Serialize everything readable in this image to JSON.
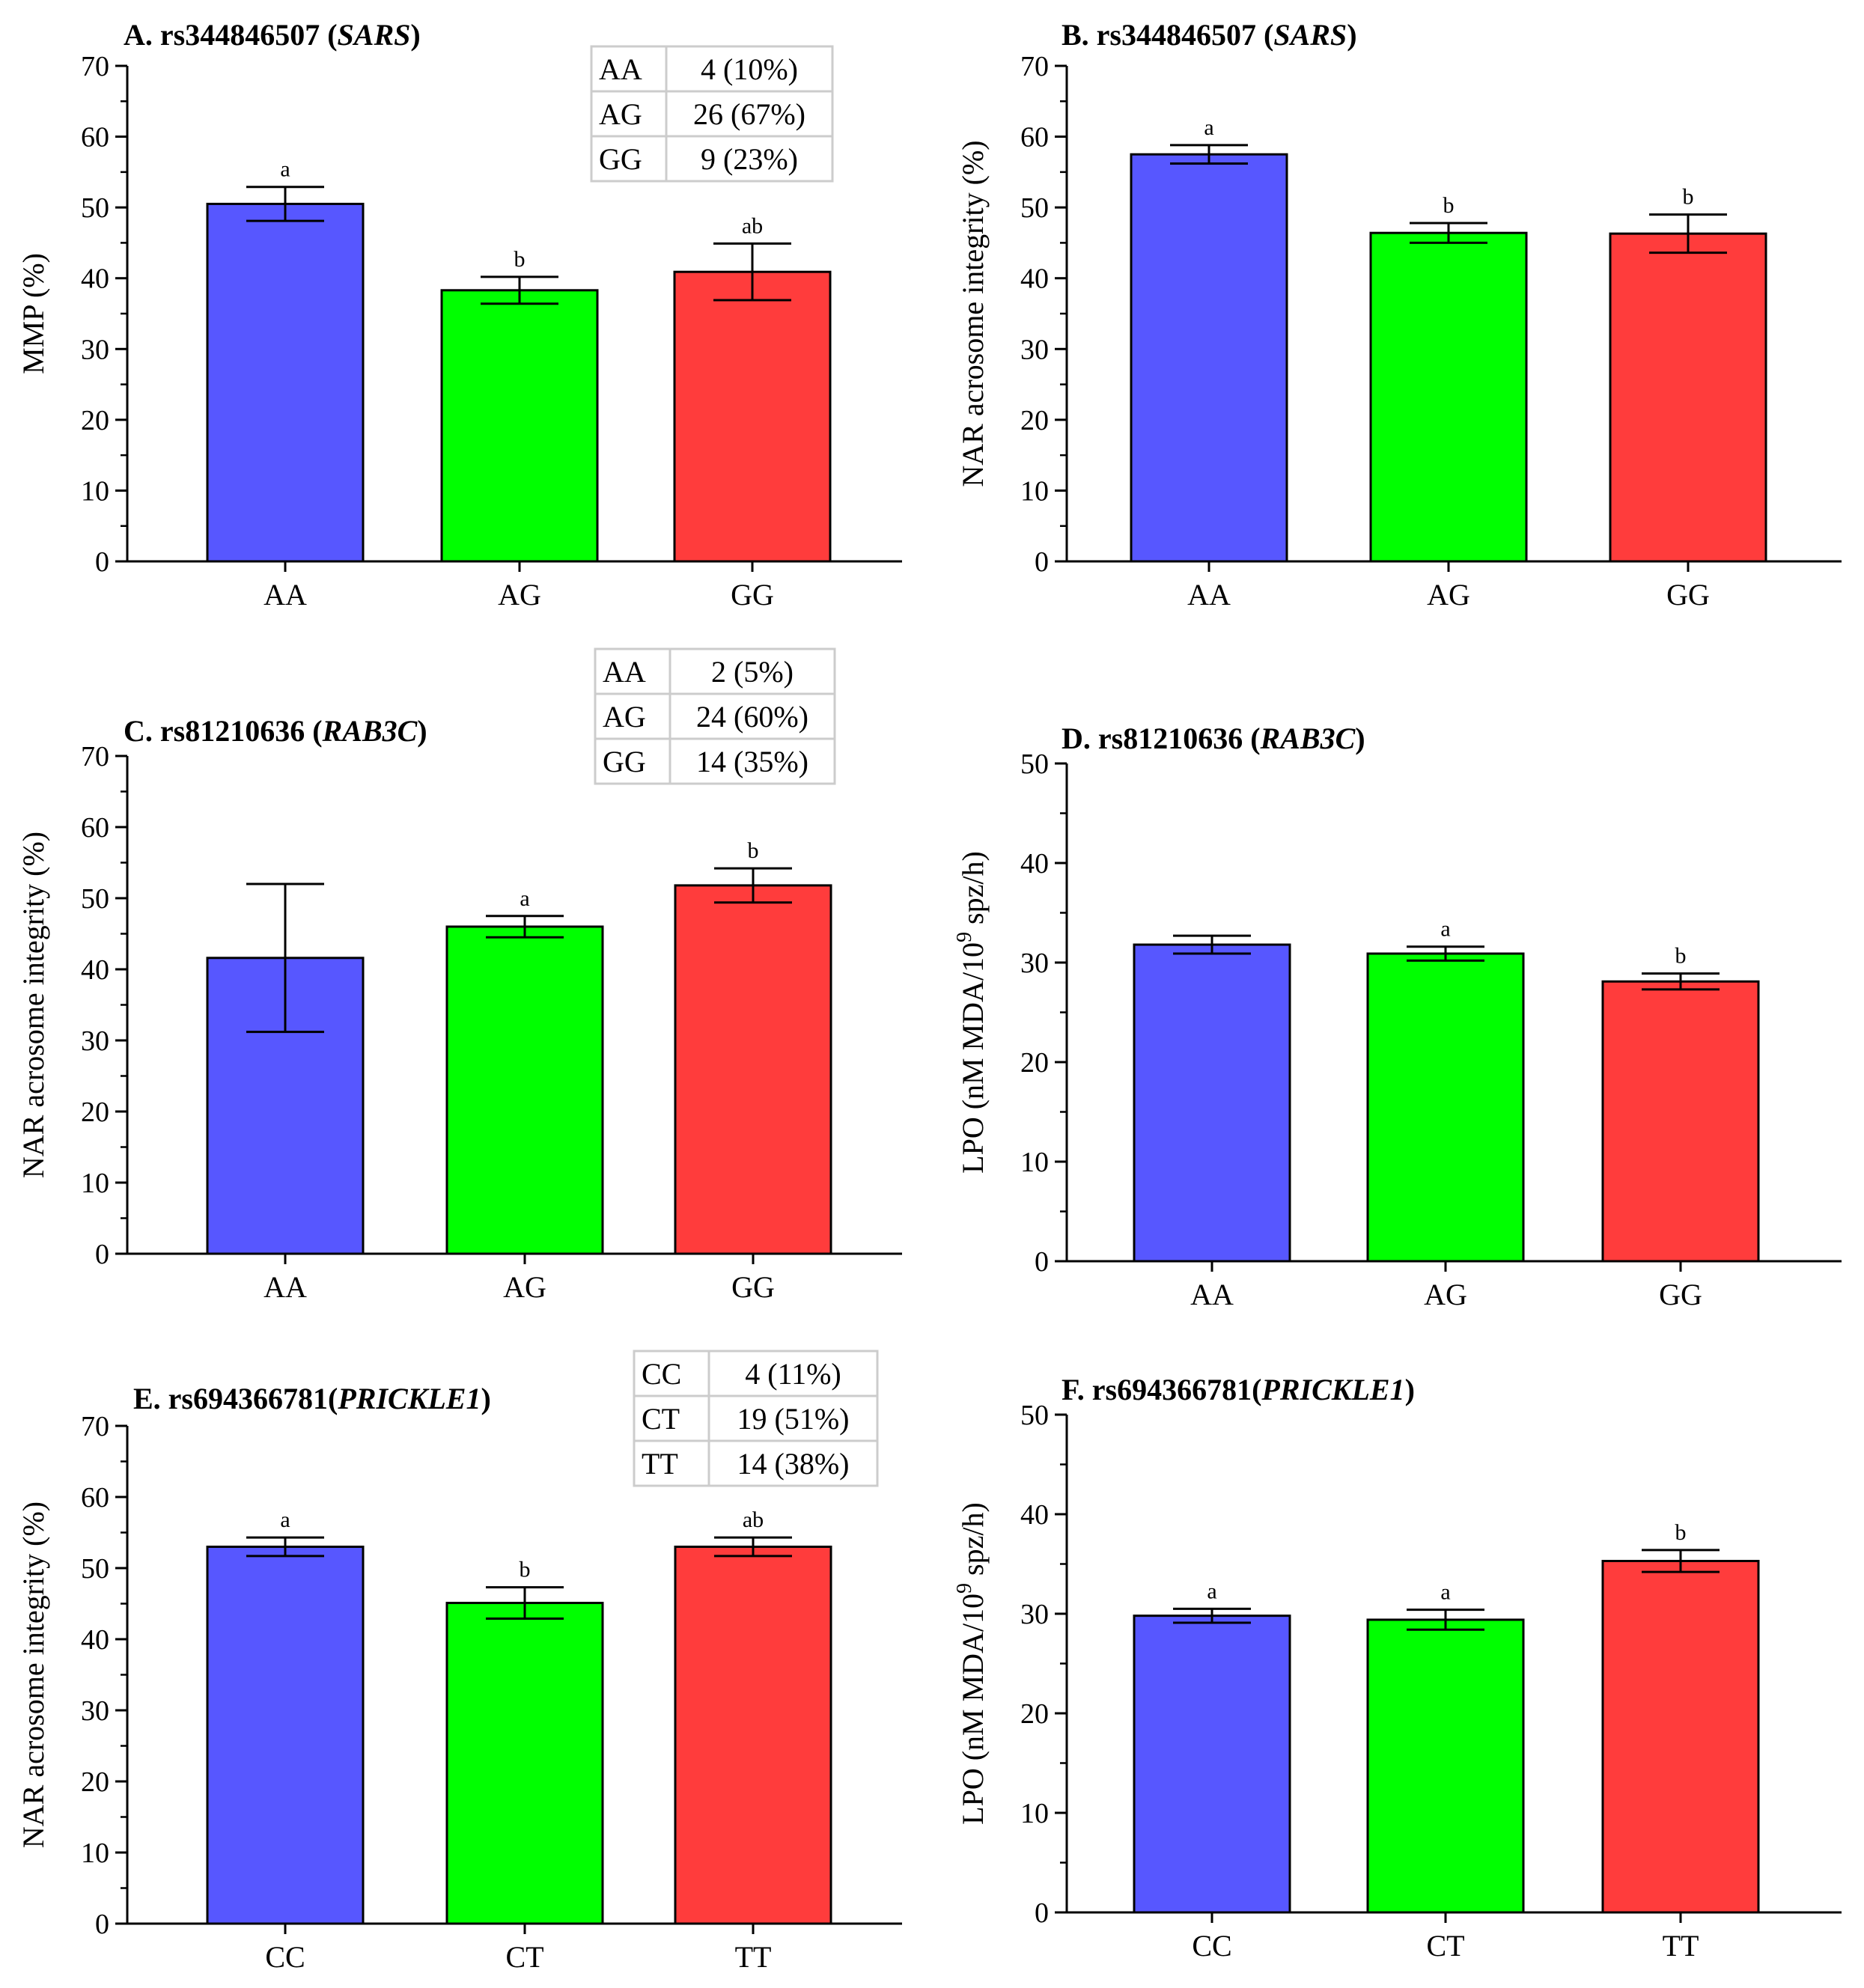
{
  "chart_data": [
    {
      "id": "A",
      "type": "bar",
      "title_prefix": "A. rs344846507 (",
      "title_gene": "SARS",
      "title_suffix": ")",
      "ylabel": "MMP (%)",
      "ylabel_sup": "",
      "ylabel_after": "",
      "ylim": [
        0,
        70
      ],
      "ytick_step": 10,
      "categories": [
        "AA",
        "AG",
        "GG"
      ],
      "values": [
        50.5,
        38.3,
        40.9
      ],
      "errors": [
        2.4,
        1.9,
        4.0
      ],
      "significance": [
        "a",
        "b",
        "ab"
      ],
      "colors": [
        "#5757ff",
        "#00ff00",
        "#ff3c3c"
      ],
      "genotype_table": [
        [
          "AA",
          "4 (10%)"
        ],
        [
          "AG",
          "26 (67%)"
        ],
        [
          "GG",
          "9 (23%)"
        ]
      ]
    },
    {
      "id": "B",
      "type": "bar",
      "title_prefix": "B. rs344846507 (",
      "title_gene": "SARS",
      "title_suffix": ")",
      "ylabel": "NAR acrosome integrity (%)",
      "ylabel_sup": "",
      "ylabel_after": "",
      "ylim": [
        0,
        70
      ],
      "ytick_step": 10,
      "categories": [
        "AA",
        "AG",
        "GG"
      ],
      "values": [
        57.5,
        46.4,
        46.3
      ],
      "errors": [
        1.3,
        1.4,
        2.7
      ],
      "significance": [
        "a",
        "b",
        "b"
      ],
      "colors": [
        "#5757ff",
        "#00ff00",
        "#ff3c3c"
      ]
    },
    {
      "id": "C",
      "type": "bar",
      "title_prefix": "C. rs81210636 (",
      "title_gene": "RAB3C",
      "title_suffix": ")",
      "ylabel": "NAR acrosome integrity (%)",
      "ylabel_sup": "",
      "ylabel_after": "",
      "ylim": [
        0,
        70
      ],
      "ytick_step": 10,
      "categories": [
        "AA",
        "AG",
        "GG"
      ],
      "values": [
        41.6,
        46.0,
        51.8
      ],
      "errors": [
        10.4,
        1.5,
        2.4
      ],
      "significance": [
        "",
        "a",
        "b"
      ],
      "colors": [
        "#5757ff",
        "#00ff00",
        "#ff3c3c"
      ],
      "genotype_table": [
        [
          "AA",
          "2 (5%)"
        ],
        [
          "AG",
          "24 (60%)"
        ],
        [
          "GG",
          "14 (35%)"
        ]
      ]
    },
    {
      "id": "D",
      "type": "bar",
      "title_prefix": "D. rs81210636 (",
      "title_gene": "RAB3C",
      "title_suffix": ")",
      "ylabel": "LPO (nM MDA/10",
      "ylabel_sup": "9",
      "ylabel_after": " spz/h)",
      "ylim": [
        0,
        50
      ],
      "ytick_step": 10,
      "categories": [
        "AA",
        "AG",
        "GG"
      ],
      "values": [
        31.8,
        30.9,
        28.1
      ],
      "errors": [
        0.9,
        0.7,
        0.8
      ],
      "significance": [
        "",
        "a",
        "b"
      ],
      "colors": [
        "#5757ff",
        "#00ff00",
        "#ff3c3c"
      ]
    },
    {
      "id": "E",
      "type": "bar",
      "title_prefix": "E. rs694366781(",
      "title_gene": "PRICKLE1",
      "title_suffix": ")",
      "ylabel": "NAR acrosome integrity (%)",
      "ylabel_sup": "",
      "ylabel_after": "",
      "ylim": [
        0,
        70
      ],
      "ytick_step": 10,
      "categories": [
        "CC",
        "CT",
        "TT"
      ],
      "values": [
        53.0,
        45.1,
        53.0
      ],
      "errors": [
        1.3,
        2.2,
        1.3
      ],
      "significance": [
        "a",
        "b",
        "ab"
      ],
      "colors": [
        "#5757ff",
        "#00ff00",
        "#ff3c3c"
      ],
      "genotype_table": [
        [
          "CC",
          "4 (11%)"
        ],
        [
          "CT",
          "19 (51%)"
        ],
        [
          "TT",
          "14 (38%)"
        ]
      ]
    },
    {
      "id": "F",
      "type": "bar",
      "title_prefix": "F. rs694366781(",
      "title_gene": "PRICKLE1",
      "title_suffix": ")",
      "ylabel": "LPO (nM MDA/10",
      "ylabel_sup": "9",
      "ylabel_after": " spz/h)",
      "ylim": [
        0,
        50
      ],
      "ytick_step": 10,
      "categories": [
        "CC",
        "CT",
        "TT"
      ],
      "values": [
        29.8,
        29.4,
        35.3
      ],
      "errors": [
        0.7,
        1.0,
        1.1
      ],
      "significance": [
        "a",
        "a",
        "b"
      ],
      "colors": [
        "#5757ff",
        "#00ff00",
        "#ff3c3c"
      ]
    }
  ]
}
